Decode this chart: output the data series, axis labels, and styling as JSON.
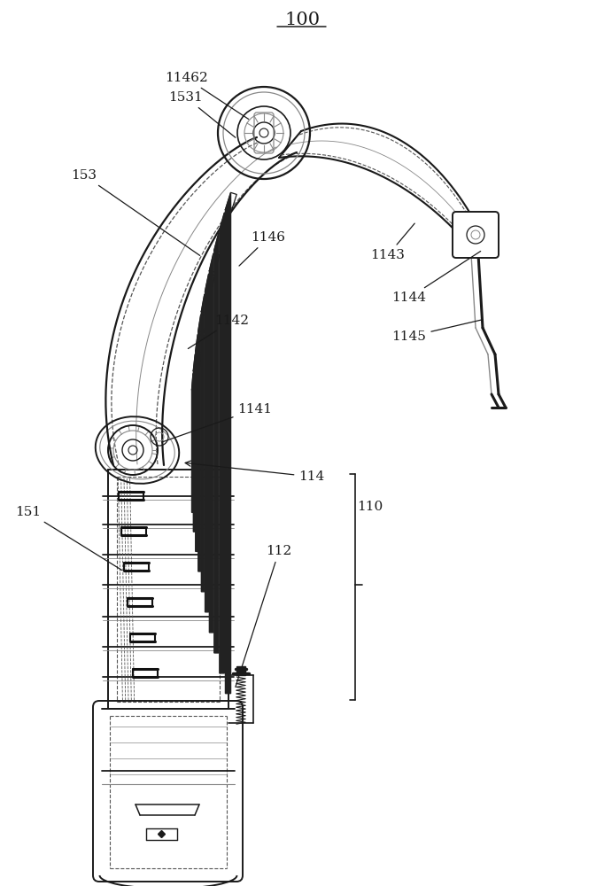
{
  "title": "100",
  "bg_color": "#ffffff",
  "lc": "#1a1a1a",
  "dc": "#555555",
  "llc": "#888888",
  "figsize": [
    6.82,
    10.0
  ],
  "dpi": 100
}
